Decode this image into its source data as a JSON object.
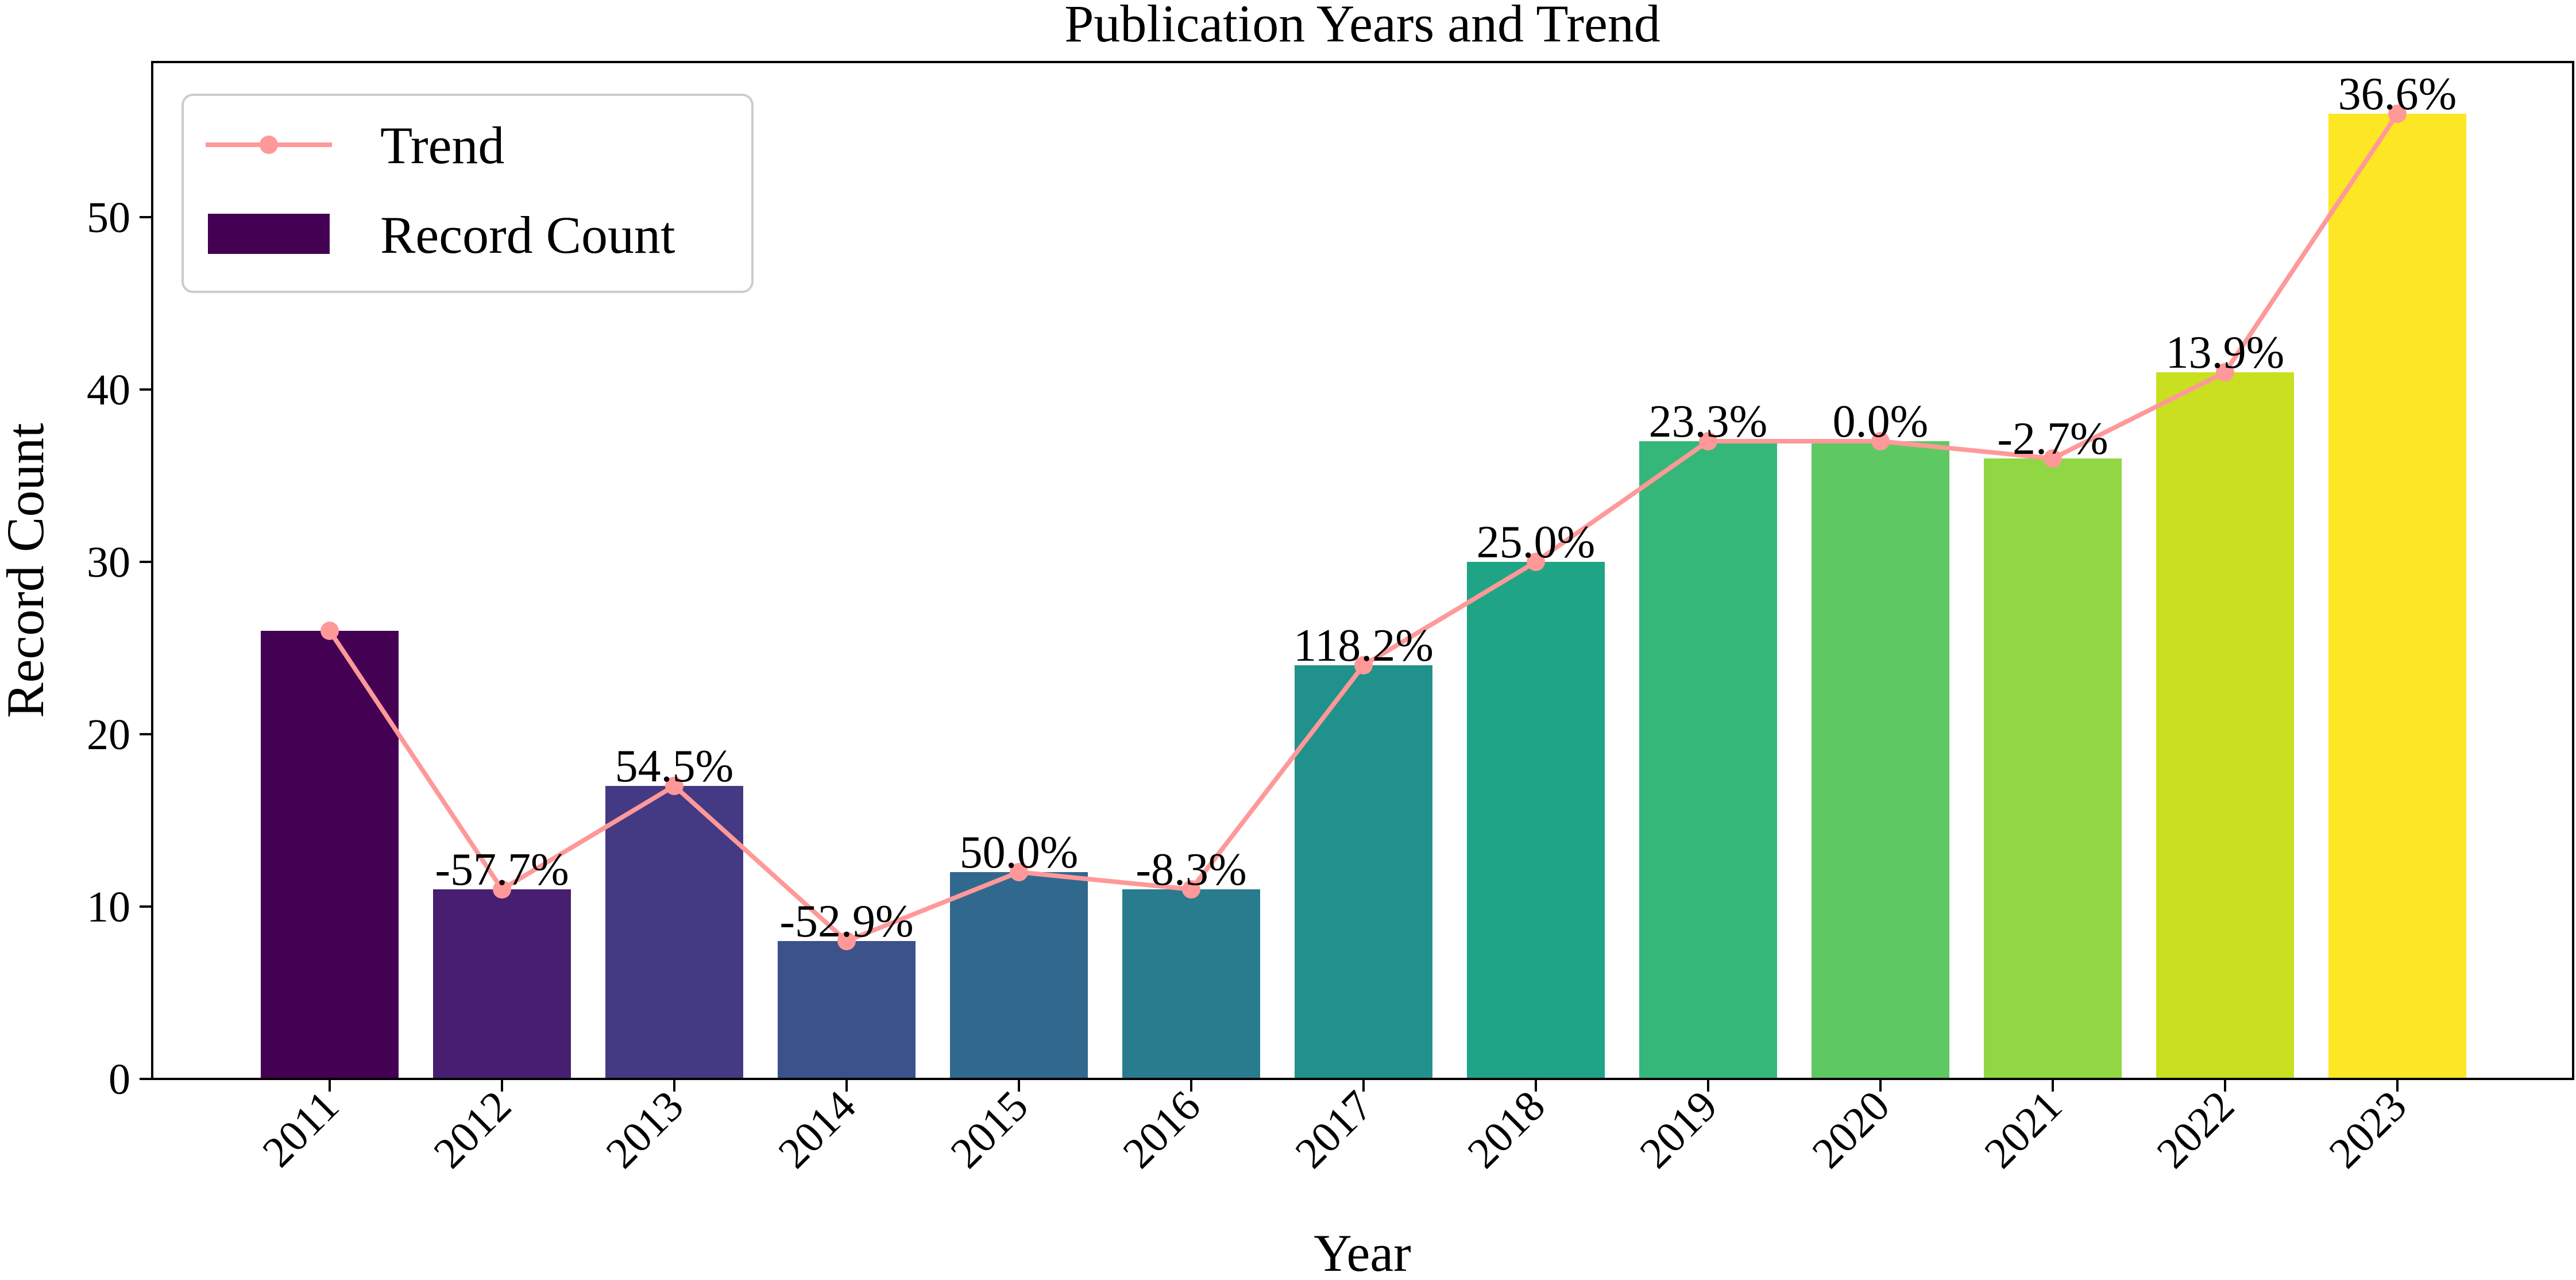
{
  "chart_data": {
    "type": "bar",
    "title": "Publication Years and Trend",
    "xlabel": "Year",
    "ylabel": "Record Count",
    "ylim": [
      0,
      59
    ],
    "yticks": [
      0,
      10,
      20,
      30,
      40,
      50
    ],
    "categories": [
      "2011",
      "2012",
      "2013",
      "2014",
      "2015",
      "2016",
      "2017",
      "2018",
      "2019",
      "2020",
      "2021",
      "2022",
      "2023"
    ],
    "series": [
      {
        "name": "Record Count",
        "type": "bar",
        "values": [
          26,
          11,
          17,
          8,
          12,
          11,
          24,
          30,
          37,
          37,
          36,
          41,
          56
        ],
        "colors": [
          "#440154",
          "#481f70",
          "#443983",
          "#3b528b",
          "#31688e",
          "#287c8e",
          "#21918c",
          "#20a486",
          "#35b779",
          "#5ec962",
          "#90d743",
          "#c8e020",
          "#fde725"
        ]
      },
      {
        "name": "Trend",
        "type": "line",
        "values": [
          26,
          11,
          17,
          8,
          12,
          11,
          24,
          30,
          37,
          37,
          36,
          41,
          56
        ],
        "color": "#ff9999"
      }
    ],
    "data_labels": [
      "",
      "-57.7%",
      "54.5%",
      "-52.9%",
      "50.0%",
      "-8.3%",
      "118.2%",
      "25.0%",
      "23.3%",
      "0.0%",
      "-2.7%",
      "13.9%",
      "36.6%"
    ],
    "legend": {
      "position": "top-left",
      "entries": [
        "Trend",
        "Record Count"
      ]
    },
    "grid": false
  }
}
